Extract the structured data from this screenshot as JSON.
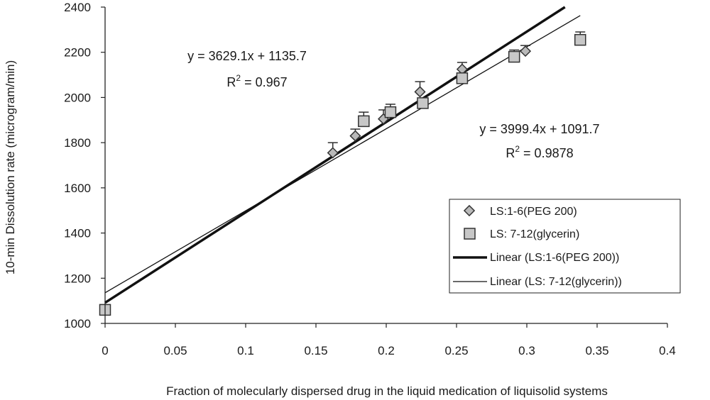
{
  "chart_data": {
    "type": "scatter",
    "xlabel": "Fraction of molecularly dispersed drug in the liquid medication of liquisolid systems",
    "ylabel": "10-min Dissolution rate (microgram/min)",
    "xlim": [
      0,
      0.4
    ],
    "ylim": [
      1000,
      2400
    ],
    "x_ticks": [
      "0",
      "0.05",
      "0.1",
      "0.15",
      "0.2",
      "0.25",
      "0.3",
      "0.35",
      "0.4"
    ],
    "y_ticks": [
      "1000",
      "1200",
      "1400",
      "1600",
      "1800",
      "2000",
      "2200",
      "2400"
    ],
    "grid": false,
    "legend_position": "right",
    "series": [
      {
        "name": "LS:1-6(PEG 200)",
        "marker": "diamond",
        "color": "#b9b9b9",
        "points": [
          {
            "x": 0.162,
            "y": 1755,
            "err": 45
          },
          {
            "x": 0.178,
            "y": 1830,
            "err": 30
          },
          {
            "x": 0.198,
            "y": 1905,
            "err": 40
          },
          {
            "x": 0.224,
            "y": 2025,
            "err": 45
          },
          {
            "x": 0.254,
            "y": 2125,
            "err": 30
          },
          {
            "x": 0.299,
            "y": 2205,
            "err": 25
          }
        ]
      },
      {
        "name": "LS: 7-12(glycerin)",
        "marker": "square",
        "color": "#c7c7c7",
        "points": [
          {
            "x": 0.0,
            "y": 1060,
            "err": 0
          },
          {
            "x": 0.184,
            "y": 1895,
            "err": 40
          },
          {
            "x": 0.203,
            "y": 1935,
            "err": 35
          },
          {
            "x": 0.226,
            "y": 1975,
            "err": 20
          },
          {
            "x": 0.254,
            "y": 2085,
            "err": 15
          },
          {
            "x": 0.291,
            "y": 2180,
            "err": 30
          },
          {
            "x": 0.338,
            "y": 2255,
            "err": 35
          }
        ]
      }
    ],
    "trendlines": [
      {
        "name": "Linear (LS:1-6(PEG 200))",
        "slope": 3999.4,
        "intercept": 1091.7,
        "width": "thick",
        "x_range": [
          0,
          0.33
        ]
      },
      {
        "name": "Linear (LS: 7-12(glycerin))",
        "slope": 3629.1,
        "intercept": 1135.7,
        "width": "thin",
        "x_range": [
          0,
          0.338
        ]
      }
    ],
    "annotations": [
      {
        "equation": "y = 3629.1x + 1135.7",
        "r2_prefix": "R",
        "r2_sup": "2",
        "r2_value": " = 0.967"
      },
      {
        "equation": "y = 3999.4x + 1091.7",
        "r2_prefix": "R",
        "r2_sup": "2",
        "r2_value": " = 0.9878"
      }
    ]
  }
}
